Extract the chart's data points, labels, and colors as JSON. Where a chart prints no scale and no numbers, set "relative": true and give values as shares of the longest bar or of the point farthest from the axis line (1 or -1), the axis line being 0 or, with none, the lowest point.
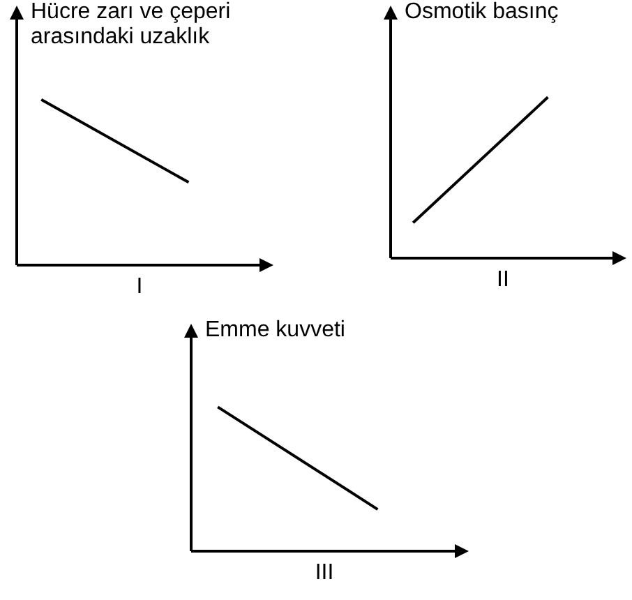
{
  "chart_data": [
    {
      "type": "line",
      "relative": true,
      "ylabel": "Hücre zarı ve çeperi arasındaki uzaklık",
      "xlabel": "I",
      "categories": [
        null,
        null,
        null,
        null,
        null
      ],
      "series": [
        {
          "color": "#000000",
          "values": [
            1,
            null,
            null,
            0.5,
            null
          ]
        }
      ],
      "marker": "none",
      "grid": false,
      "legend": false,
      "tick_labels": false
    },
    {
      "type": "line",
      "relative": true,
      "ylabel": "Osmotik basınç",
      "xlabel": "II",
      "categories": [
        null,
        null,
        null,
        null,
        null
      ],
      "series": [
        {
          "color": "#000000",
          "values": [
            0.22,
            null,
            null,
            1,
            null
          ]
        }
      ],
      "marker": "none",
      "grid": false,
      "legend": false,
      "tick_labels": false
    },
    {
      "type": "line",
      "relative": true,
      "ylabel": "Emme kuvveti",
      "xlabel": "III",
      "categories": [
        null,
        null,
        null,
        null,
        null
      ],
      "series": [
        {
          "color": "#000000",
          "values": [
            1,
            null,
            null,
            0.29,
            null
          ]
        }
      ],
      "marker": "none",
      "grid": false,
      "legend": false,
      "tick_labels": false
    }
  ]
}
